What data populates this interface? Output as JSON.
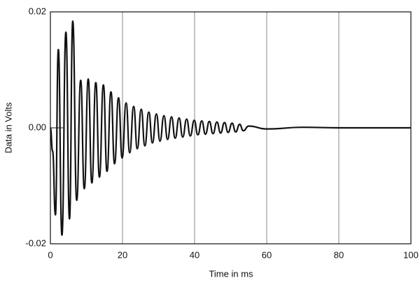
{
  "chart_data": {
    "type": "line",
    "xlabel": "Time in ms",
    "ylabel": "Data in Volts",
    "x": [
      0,
      0.6,
      1.4,
      2.2,
      3.2,
      4.3,
      5.3,
      6.2,
      7.3,
      8.4,
      9.4,
      10.5,
      11.5,
      12.6,
      13.6,
      14.7,
      15.7,
      16.8,
      17.8,
      18.9,
      19.9,
      21.0,
      22.0,
      23.1,
      24.1,
      25.2,
      26.2,
      27.3,
      28.3,
      29.4,
      30.4,
      31.5,
      32.5,
      33.6,
      34.6,
      35.7,
      36.7,
      37.8,
      38.8,
      39.9,
      40.9,
      42.0,
      43.0,
      44.1,
      45.1,
      46.2,
      47.2,
      48.3,
      49.3,
      50.4,
      51.4,
      52.5,
      53.5,
      55,
      60,
      70,
      80,
      100
    ],
    "series": [
      {
        "color": "#111111",
        "values": [
          0,
          -0.004,
          -0.015,
          0.0135,
          -0.0185,
          0.0165,
          -0.0157,
          0.0184,
          -0.0125,
          0.0082,
          -0.0105,
          0.0084,
          -0.0095,
          0.0078,
          -0.0085,
          0.0074,
          -0.0075,
          0.0062,
          -0.0062,
          0.0052,
          -0.0052,
          0.0043,
          -0.0043,
          0.0037,
          -0.0036,
          0.0032,
          -0.0031,
          0.0027,
          -0.0026,
          0.0024,
          -0.0023,
          0.0021,
          -0.002,
          0.0019,
          -0.0018,
          0.0017,
          -0.0016,
          0.0015,
          -0.0014,
          0.0013,
          -0.0012,
          0.0012,
          -0.0011,
          0.0011,
          -0.001,
          0.001,
          -0.0009,
          0.0009,
          -0.0008,
          0.0008,
          -0.0007,
          0.0006,
          -0.0005,
          0.0003,
          -0.0002,
          0.0001,
          0,
          0
        ]
      }
    ],
    "xlim": [
      0,
      100
    ],
    "xticks": [
      0,
      20,
      40,
      60,
      80,
      100
    ],
    "ylim": [
      -0.02,
      0.02
    ],
    "yticks": [
      -0.02,
      {
        "value": 0,
        "label": "0.00"
      },
      0.02
    ],
    "grid": true
  }
}
